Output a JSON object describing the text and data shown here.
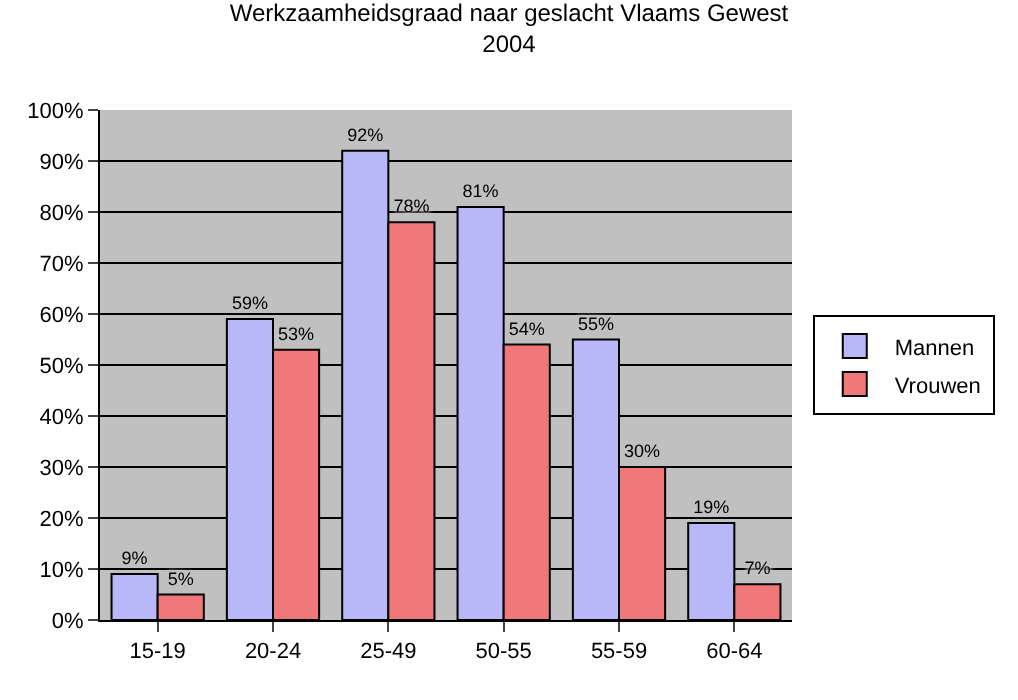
{
  "chart_data": {
    "type": "bar",
    "title": "Werkzaamheidsgraad naar geslacht Vlaams Gewest\n2004",
    "categories": [
      "15-19",
      "20-24",
      "25-49",
      "50-55",
      "55-59",
      "60-64"
    ],
    "series": [
      {
        "name": "Mannen",
        "color": "#b8b8f8",
        "values": [
          9,
          59,
          92,
          81,
          55,
          19
        ],
        "value_labels": [
          "9%",
          "59%",
          "92%",
          "81%",
          "55%",
          "19%"
        ]
      },
      {
        "name": "Vrouwen",
        "color": "#f07878",
        "values": [
          5,
          53,
          78,
          54,
          30,
          7
        ],
        "value_labels": [
          "5%",
          "53%",
          "78%",
          "54%",
          "30%",
          "7%"
        ]
      }
    ],
    "ylim": [
      0,
      100
    ],
    "yticks": [
      {
        "value": 0,
        "label": "0%"
      },
      {
        "value": 10,
        "label": "10%"
      },
      {
        "value": 20,
        "label": "20%"
      },
      {
        "value": 30,
        "label": "30%"
      },
      {
        "value": 40,
        "label": "40%"
      },
      {
        "value": 50,
        "label": "50%"
      },
      {
        "value": 60,
        "label": "60%"
      },
      {
        "value": 70,
        "label": "70%"
      },
      {
        "value": 80,
        "label": "80%"
      },
      {
        "value": 90,
        "label": "90%"
      },
      {
        "value": 100,
        "label": "100%"
      }
    ],
    "grid": "y",
    "legend": "right"
  }
}
